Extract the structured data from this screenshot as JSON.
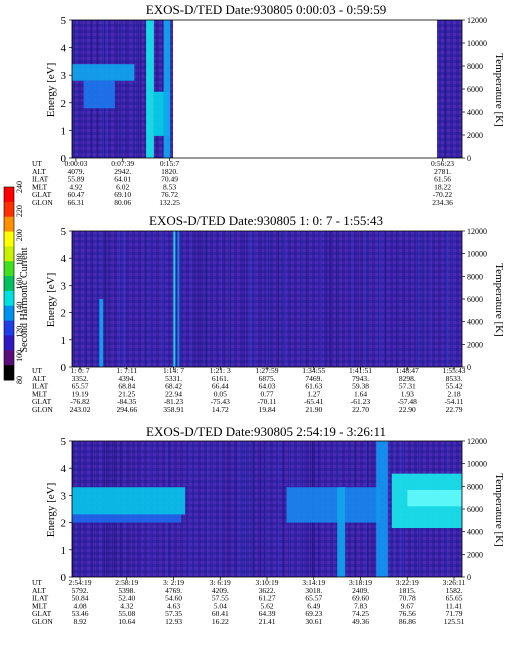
{
  "chart_data": [
    {
      "type": "heatmap",
      "title": "EXOS-D/TED   Date:930805  0:00:03 - 0:59:59",
      "ylabel": "Energy [eV]",
      "ylabel_right": "Temperature [K]",
      "ylim": [
        0,
        5
      ],
      "yticks": [
        "0",
        "1",
        "2",
        "3",
        "4",
        "5"
      ],
      "ylim_right": [
        0,
        12000
      ],
      "yticks_right": [
        "0",
        "2000",
        "4000",
        "6000",
        "8000",
        "10000",
        "12000"
      ],
      "data_gap": {
        "from_ut": "0:15:7",
        "to_ut": "0:56:23"
      },
      "orbit_table": {
        "row_labels": [
          "UT",
          "ALT",
          "ILAT",
          "MLT",
          "GLAT",
          "GLON"
        ],
        "columns": [
          {
            "ut": "0:00:03",
            "alt": "4079.",
            "ilat": "55.89",
            "mlt": "4.92",
            "glat": "60.47",
            "glon": "66.31"
          },
          {
            "ut": "0:07:39",
            "alt": "2942.",
            "ilat": "64.01",
            "mlt": "6.02",
            "glat": "69.10",
            "glon": "80.06"
          },
          {
            "ut": "0:15:7",
            "alt": "1820.",
            "ilat": "70.49",
            "mlt": "8.53",
            "glat": "76.72",
            "glon": "132.25"
          },
          {
            "ut": "0:56:23",
            "alt": "2781.",
            "ilat": "61.56",
            "mlt": "18.22",
            "glat": "-70.22",
            "glon": "234.36"
          }
        ]
      },
      "features": [
        {
          "ut_frac": 0.0,
          "ut_frac_end": 0.16,
          "e_lo": 2.8,
          "e_hi": 3.4,
          "level": 0.55
        },
        {
          "ut_frac": 0.03,
          "ut_frac_end": 0.11,
          "e_lo": 1.8,
          "e_hi": 2.8,
          "level": 0.4
        },
        {
          "ut_frac": 0.19,
          "ut_frac_end": 0.21,
          "e_lo": 0,
          "e_hi": 5,
          "level": 0.8
        },
        {
          "ut_frac": 0.21,
          "ut_frac_end": 0.25,
          "e_lo": 0.8,
          "e_hi": 2.4,
          "level": 0.7
        },
        {
          "ut_frac": 0.235,
          "ut_frac_end": 0.252,
          "e_lo": 0,
          "e_hi": 5,
          "level": 0.55
        }
      ]
    },
    {
      "type": "heatmap",
      "title": "EXOS-D/TED   Date:930805  1: 0: 7 - 1:55:43",
      "ylabel": "Energy [eV]",
      "ylabel_right": "Temperature [K]",
      "ylim": [
        0,
        5
      ],
      "yticks": [
        "0",
        "1",
        "2",
        "3",
        "4",
        "5"
      ],
      "ylim_right": [
        0,
        12000
      ],
      "yticks_right": [
        "0",
        "2000",
        "4000",
        "6000",
        "8000",
        "10000",
        "12000"
      ],
      "orbit_table": {
        "row_labels": [
          "UT",
          "ALT",
          "ILAT",
          "MLT",
          "GLAT",
          "GLON"
        ],
        "columns": [
          {
            "ut": "1: 0: 7",
            "alt": "3352.",
            "ilat": "65.57",
            "mlt": "19.19",
            "glat": "-76.82",
            "glon": "243.02"
          },
          {
            "ut": "1: 7:11",
            "alt": "4394.",
            "ilat": "68.84",
            "mlt": "21.25",
            "glat": "-84.35",
            "glon": "294.66"
          },
          {
            "ut": "1:14: 7",
            "alt": "5331.",
            "ilat": "68.42",
            "mlt": "22.94",
            "glat": "-81.23",
            "glon": "358.91"
          },
          {
            "ut": "1:21: 3",
            "alt": "6161.",
            "ilat": "66.44",
            "mlt": "0.05",
            "glat": "-75.43",
            "glon": "14.72"
          },
          {
            "ut": "1:27:59",
            "alt": "6875.",
            "ilat": "64.03",
            "mlt": "0.77",
            "glat": "-70.11",
            "glon": "19.84"
          },
          {
            "ut": "1:34:55",
            "alt": "7469.",
            "ilat": "61.63",
            "mlt": "1.27",
            "glat": "-65.41",
            "glon": "21.90"
          },
          {
            "ut": "1:41:51",
            "alt": "7943.",
            "ilat": "59.38",
            "mlt": "1.64",
            "glat": "-61.23",
            "glon": "22.70"
          },
          {
            "ut": "1:48:47",
            "alt": "8298.",
            "ilat": "57.31",
            "mlt": "1.93",
            "glat": "-57.48",
            "glon": "22.90"
          },
          {
            "ut": "1:55:43",
            "alt": "8533.",
            "ilat": "55.42",
            "mlt": "2.18",
            "glat": "-54.11",
            "glon": "22.79"
          }
        ]
      },
      "features": [
        {
          "ut_frac": 0.07,
          "ut_frac_end": 0.08,
          "e_lo": 0,
          "e_hi": 2.5,
          "level": 0.55
        },
        {
          "ut_frac": 0.26,
          "ut_frac_end": 0.265,
          "e_lo": 0,
          "e_hi": 5,
          "level": 0.8
        },
        {
          "ut_frac": 0.27,
          "ut_frac_end": 0.275,
          "e_lo": 0,
          "e_hi": 5,
          "level": 0.45
        }
      ]
    },
    {
      "type": "heatmap",
      "title": "EXOS-D/TED   Date:930805  2:54:19 - 3:26:11",
      "ylabel": "Energy [eV]",
      "ylabel_right": "Temperature [K]",
      "ylim": [
        0,
        5
      ],
      "yticks": [
        "0",
        "1",
        "2",
        "3",
        "4",
        "5"
      ],
      "ylim_right": [
        0,
        12000
      ],
      "yticks_right": [
        "0",
        "2000",
        "4000",
        "6000",
        "8000",
        "10000",
        "12000"
      ],
      "orbit_table": {
        "row_labels": [
          "UT",
          "ALT",
          "ILAT",
          "MLT",
          "GLAT",
          "GLON"
        ],
        "columns": [
          {
            "ut": "2:54:19",
            "alt": "5792.",
            "ilat": "50.84",
            "mlt": "4.08",
            "glat": "53.46",
            "glon": "8.92"
          },
          {
            "ut": "2:58:19",
            "alt": "5398.",
            "ilat": "52.40",
            "mlt": "4.32",
            "glat": "55.08",
            "glon": "10.64"
          },
          {
            "ut": "3: 2:19",
            "alt": "4769.",
            "ilat": "54.60",
            "mlt": "4.63",
            "glat": "57.35",
            "glon": "12.93"
          },
          {
            "ut": "3: 6:19",
            "alt": "4209.",
            "ilat": "57.55",
            "mlt": "5.04",
            "glat": "60.41",
            "glon": "16.22"
          },
          {
            "ut": "3:10:19",
            "alt": "3622.",
            "ilat": "61.27",
            "mlt": "5.62",
            "glat": "64.39",
            "glon": "21.41"
          },
          {
            "ut": "3:14:19",
            "alt": "3018.",
            "ilat": "65.57",
            "mlt": "6.49",
            "glat": "69.23",
            "glon": "30.61"
          },
          {
            "ut": "3:18:19",
            "alt": "2409.",
            "ilat": "69.60",
            "mlt": "7.83",
            "glat": "74.25",
            "glon": "49.36"
          },
          {
            "ut": "3:22:19",
            "alt": "1815.",
            "ilat": "70.78",
            "mlt": "9.67",
            "glat": "76.56",
            "glon": "86.86"
          },
          {
            "ut": "3:26:11",
            "alt": "1582.",
            "ilat": "65.65",
            "mlt": "11.41",
            "glat": "71.79",
            "glon": "125.51"
          }
        ]
      },
      "features": [
        {
          "ut_frac": 0.0,
          "ut_frac_end": 0.29,
          "e_lo": 2.3,
          "e_hi": 3.3,
          "level": 0.65
        },
        {
          "ut_frac": 0.0,
          "ut_frac_end": 0.28,
          "e_lo": 2.0,
          "e_hi": 2.3,
          "level": 0.35
        },
        {
          "ut_frac": 0.55,
          "ut_frac_end": 0.79,
          "e_lo": 2.0,
          "e_hi": 3.3,
          "level": 0.45
        },
        {
          "ut_frac": 0.68,
          "ut_frac_end": 0.7,
          "e_lo": 0,
          "e_hi": 3.3,
          "level": 0.55
        },
        {
          "ut_frac": 0.78,
          "ut_frac_end": 0.81,
          "e_lo": 0,
          "e_hi": 5,
          "level": 0.5
        },
        {
          "ut_frac": 0.82,
          "ut_frac_end": 1.0,
          "e_lo": 1.8,
          "e_hi": 3.8,
          "level": 0.8
        },
        {
          "ut_frac": 0.86,
          "ut_frac_end": 1.0,
          "e_lo": 2.6,
          "e_hi": 3.2,
          "level": 0.95
        }
      ]
    }
  ],
  "colorbar": {
    "label": "Second Harmonic Current",
    "ticks": [
      "80",
      "100",
      "120",
      "140",
      "160",
      "180",
      "200",
      "220",
      "240"
    ],
    "colors": [
      "#000000",
      "#5a0e7a",
      "#3018c0",
      "#1f3ee8",
      "#0090f0",
      "#00e0e0",
      "#00c060",
      "#40e020",
      "#c8f000",
      "#ffff00",
      "#ff9000",
      "#ff3000",
      "#ff0000"
    ]
  }
}
